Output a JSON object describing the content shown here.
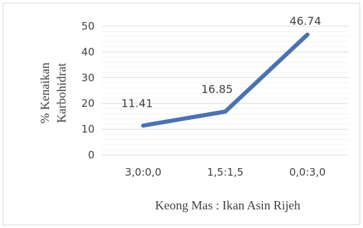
{
  "chart_data": {
    "type": "line",
    "categories": [
      "3,0:0,0",
      "1,5:1,5",
      "0,0:3,0"
    ],
    "series": [
      {
        "values": [
          11.41,
          16.85,
          46.74
        ],
        "color": "#4a72b0"
      }
    ],
    "data_labels": [
      "11.41",
      "16.85",
      "46.74"
    ],
    "xlabel": "Keong Mas : Ikan Asin Rijeh",
    "ylabel_lines": [
      "% Kenaikan",
      "Karbohidrat"
    ],
    "ylim": [
      0,
      50
    ],
    "yticks": [
      "0",
      "10",
      "20",
      "30",
      "40",
      "50"
    ],
    "grid": true,
    "minor_grid": true,
    "legend": "none",
    "colors": {
      "border": "#d9d9d9",
      "grid": "#d9d9d9",
      "text": "#404040"
    }
  }
}
